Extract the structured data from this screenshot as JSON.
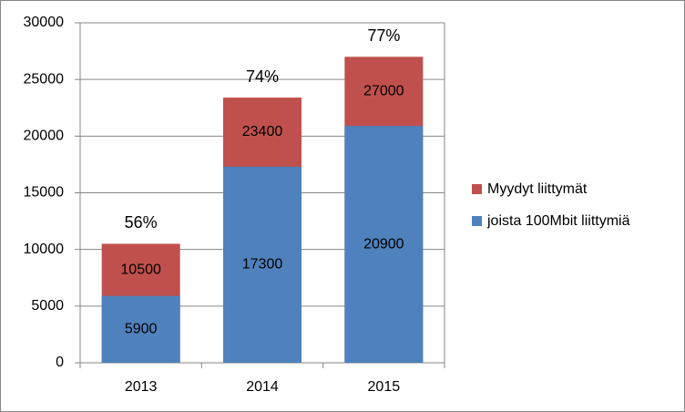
{
  "chart_data": {
    "type": "bar",
    "categories": [
      "2013",
      "2014",
      "2015"
    ],
    "series": [
      {
        "name": "Myydyt liittymät",
        "color": "#c0504d",
        "values": [
          10500,
          23400,
          27000
        ]
      },
      {
        "name": "joista 100Mbit liittymiä",
        "color": "#4f81bd",
        "values": [
          5900,
          17300,
          20900
        ]
      }
    ],
    "annotations": [
      "56%",
      "74%",
      "77%"
    ],
    "ylim": [
      0,
      30000
    ],
    "yticks": [
      0,
      5000,
      10000,
      15000,
      20000,
      25000,
      30000
    ],
    "grid": true,
    "legend": "right"
  }
}
